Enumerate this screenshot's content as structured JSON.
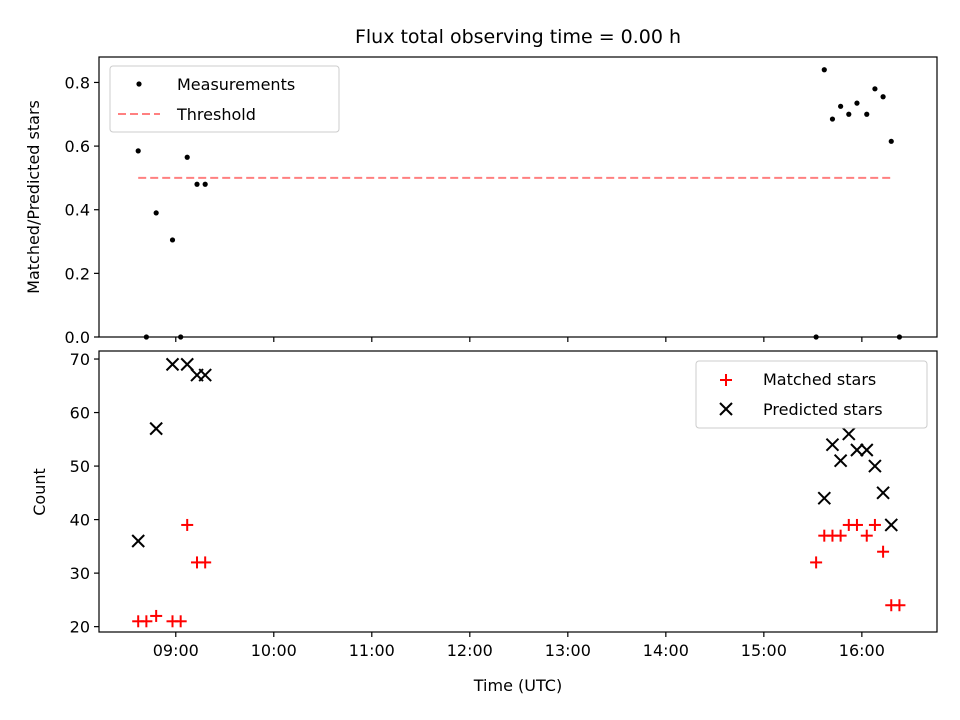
{
  "chart_data": [
    {
      "type": "scatter",
      "title": "Flux total observing time = 0.00 h",
      "xlabel": "",
      "ylabel": "Matched/Predicted stars",
      "xlim": [
        "08:13",
        "16:46"
      ],
      "ylim": [
        0.0,
        0.88
      ],
      "yticks": [
        0.0,
        0.2,
        0.4,
        0.6,
        0.8
      ],
      "ytick_labels": [
        "0.0",
        "0.2",
        "0.4",
        "0.6",
        "0.8"
      ],
      "legend_position": "top-left",
      "series": [
        {
          "name": "Measurements",
          "marker": "dot",
          "color": "#000000",
          "x": [
            "08:37",
            "08:42",
            "08:48",
            "08:58",
            "09:03",
            "09:07",
            "09:13",
            "09:18",
            "15:32",
            "15:37",
            "15:42",
            "15:47",
            "15:52",
            "15:57",
            "16:03",
            "16:08",
            "16:13",
            "16:18",
            "16:23"
          ],
          "y": [
            0.585,
            0.0,
            0.39,
            0.305,
            0.0,
            0.565,
            0.48,
            0.48,
            0.0,
            0.84,
            0.685,
            0.725,
            0.7,
            0.735,
            0.7,
            0.78,
            0.755,
            0.615,
            0.0
          ]
        },
        {
          "name": "Threshold",
          "type": "line",
          "style": "dashed",
          "color": "#ff8080",
          "x": [
            "08:37",
            "16:18"
          ],
          "y": [
            0.5,
            0.5
          ]
        }
      ]
    },
    {
      "type": "scatter",
      "title": "",
      "xlabel": "Time (UTC)",
      "ylabel": "Count",
      "xlim": [
        "08:13",
        "16:46"
      ],
      "ylim": [
        19,
        71.5
      ],
      "yticks": [
        20,
        30,
        40,
        50,
        60,
        70
      ],
      "ytick_labels": [
        "20",
        "30",
        "40",
        "50",
        "60",
        "70"
      ],
      "xticks": [
        "09:00",
        "10:00",
        "11:00",
        "12:00",
        "13:00",
        "14:00",
        "15:00",
        "16:00"
      ],
      "xtick_labels": [
        "09:00",
        "10:00",
        "11:00",
        "12:00",
        "13:00",
        "14:00",
        "15:00",
        "16:00"
      ],
      "legend_position": "top-right",
      "series": [
        {
          "name": "Matched stars",
          "marker": "plus",
          "color": "#ff0000",
          "x": [
            "08:37",
            "08:42",
            "08:48",
            "08:58",
            "09:03",
            "09:07",
            "09:13",
            "09:18",
            "15:32",
            "15:37",
            "15:42",
            "15:47",
            "15:52",
            "15:57",
            "16:03",
            "16:08",
            "16:13",
            "16:18",
            "16:23"
          ],
          "y": [
            21,
            21,
            22,
            21,
            21,
            39,
            32,
            32,
            32,
            37,
            37,
            37,
            39,
            39,
            37,
            39,
            34,
            24,
            24
          ]
        },
        {
          "name": "Predicted stars",
          "marker": "x",
          "color": "#000000",
          "x": [
            "08:37",
            "08:48",
            "08:58",
            "09:07",
            "09:13",
            "09:18",
            "15:37",
            "15:42",
            "15:47",
            "15:52",
            "15:57",
            "16:03",
            "16:08",
            "16:13",
            "16:18"
          ],
          "y": [
            36,
            57,
            69,
            69,
            67,
            67,
            44,
            54,
            51,
            56,
            53,
            53,
            50,
            45,
            39
          ]
        }
      ]
    }
  ]
}
